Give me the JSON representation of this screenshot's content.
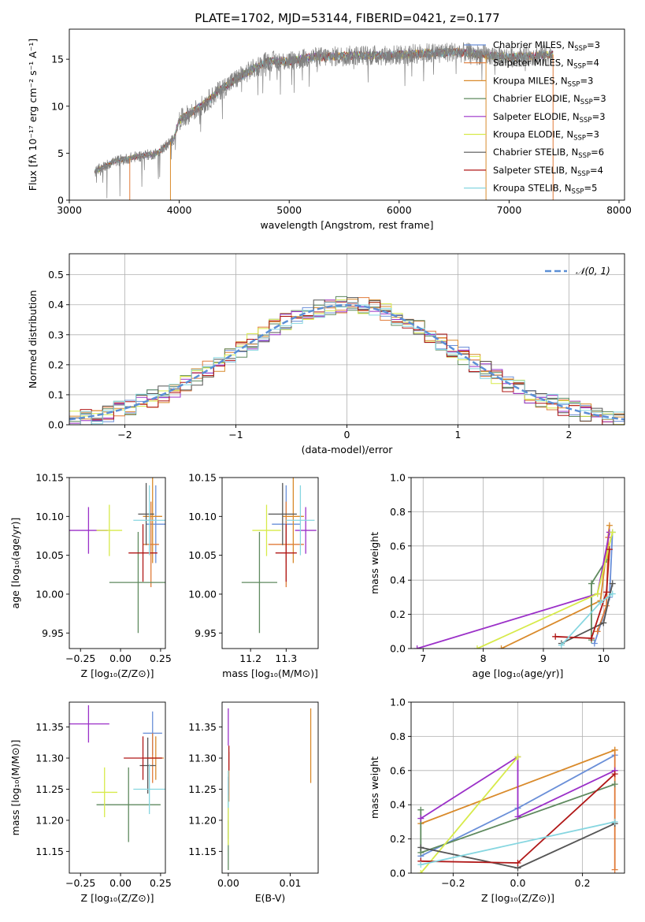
{
  "figure": {
    "title": "PLATE=1702, MJD=53144, FIBERID=0421, z=0.177"
  },
  "models": [
    {
      "name": "Chabrier MILES",
      "nssp": "3",
      "color": "#6a8fd8"
    },
    {
      "name": "Salpeter MILES",
      "nssp": "4",
      "color": "#e07b39"
    },
    {
      "name": "Kroupa MILES",
      "nssp": "3",
      "color": "#d98a2b"
    },
    {
      "name": "Chabrier ELODIE",
      "nssp": "3",
      "color": "#5f8a5f"
    },
    {
      "name": "Salpeter ELODIE",
      "nssp": "3",
      "color": "#9b30c8"
    },
    {
      "name": "Kroupa ELODIE",
      "nssp": "3",
      "color": "#d7ea4a"
    },
    {
      "name": "Chabrier STELIB",
      "nssp": "6",
      "color": "#555555"
    },
    {
      "name": "Salpeter STELIB",
      "nssp": "4",
      "color": "#b01717"
    },
    {
      "name": "Kroupa STELIB",
      "nssp": "5",
      "color": "#86d6e0"
    }
  ],
  "chart_data": [
    {
      "id": "spectrum",
      "type": "line",
      "title": "PLATE=1702, MJD=53144, FIBERID=0421, z=0.177",
      "xlabel": "wavelength [Angstrom, rest frame]",
      "ylabel": "Flux [fλ 10⁻¹⁷ erg cm⁻² s⁻¹ A⁻¹]",
      "xlim": [
        3000,
        8050
      ],
      "ylim": [
        0,
        18.2
      ],
      "xticks": [
        3000,
        4000,
        5000,
        6000,
        7000,
        8000
      ],
      "yticks": [
        0,
        5,
        10,
        15
      ],
      "data_color": "#808080",
      "data_anchors": [
        [
          3230,
          3.0
        ],
        [
          3400,
          4.1
        ],
        [
          3600,
          4.6
        ],
        [
          3800,
          5.0
        ],
        [
          3950,
          6.5
        ],
        [
          4000,
          8.5
        ],
        [
          4200,
          10.0
        ],
        [
          4400,
          12.0
        ],
        [
          4600,
          13.5
        ],
        [
          4800,
          14.8
        ],
        [
          5000,
          14.8
        ],
        [
          5200,
          15.2
        ],
        [
          5400,
          15.3
        ],
        [
          5600,
          15.4
        ],
        [
          5900,
          15.4
        ],
        [
          6200,
          15.6
        ],
        [
          6500,
          15.8
        ],
        [
          7000,
          15.2
        ],
        [
          7400,
          15.5
        ]
      ],
      "edge_drops": [
        {
          "model": 1,
          "x": 3550
        },
        {
          "model": 2,
          "x": 3920
        },
        {
          "model": 2,
          "x": 6790
        },
        {
          "model": 1,
          "x": 7400
        }
      ],
      "legend": "upper right, inside, no frame"
    },
    {
      "id": "residuals",
      "type": "step",
      "xlabel": "(data-model)/error",
      "ylabel": "Normed distribution",
      "xlim": [
        -2.5,
        2.5
      ],
      "ylim": [
        0,
        0.57
      ],
      "xticks": [
        -2,
        -1,
        0,
        1,
        2
      ],
      "yticks": [
        0.0,
        0.1,
        0.2,
        0.3,
        0.4,
        0.5
      ],
      "bin_width": 0.1,
      "reference": {
        "label": "𝒩(0, 1)",
        "mu": 0,
        "sigma": 1,
        "color": "#5b8fd6"
      },
      "grid": true
    },
    {
      "id": "age_vs_Z",
      "type": "errorbar",
      "xlabel": "Z [log₁₀(Z/Z⊙)]",
      "ylabel": "age [log₁₀(age/yr)]",
      "xlim": [
        -0.32,
        0.28
      ],
      "ylim": [
        9.93,
        10.15
      ],
      "xticks": [
        -0.25,
        0.0,
        0.25
      ],
      "yticks": [
        9.95,
        10.0,
        10.05,
        10.1,
        10.15
      ],
      "points": [
        {
          "m": 0,
          "x": 0.22,
          "xerr": 0.06,
          "y": 10.09,
          "yerr": 0.05
        },
        {
          "m": 1,
          "x": 0.19,
          "xerr": 0.05,
          "y": 10.064,
          "yerr": 0.055
        },
        {
          "m": 2,
          "x": 0.2,
          "xerr": 0.06,
          "y": 10.1,
          "yerr": 0.06
        },
        {
          "m": 3,
          "x": 0.11,
          "xerr": 0.18,
          "y": 10.015,
          "yerr": 0.065
        },
        {
          "m": 4,
          "x": -0.2,
          "xerr": 0.12,
          "y": 10.082,
          "yerr": 0.03
        },
        {
          "m": 5,
          "x": -0.07,
          "xerr": 0.08,
          "y": 10.082,
          "yerr": 0.033
        },
        {
          "m": 6,
          "x": 0.16,
          "xerr": 0.05,
          "y": 10.103,
          "yerr": 0.04
        },
        {
          "m": 7,
          "x": 0.14,
          "xerr": 0.09,
          "y": 10.053,
          "yerr": 0.037
        },
        {
          "m": 8,
          "x": 0.18,
          "xerr": 0.1,
          "y": 10.095,
          "yerr": 0.045
        }
      ]
    },
    {
      "id": "age_vs_mass",
      "type": "errorbar",
      "xlabel": "mass [log₁₀(M/M⊙)]",
      "ylabel": "",
      "xlim": [
        11.12,
        11.39
      ],
      "ylim": [
        9.93,
        10.15
      ],
      "xticks": [
        11.2,
        11.3
      ],
      "yticks": [
        9.95,
        10.0,
        10.05,
        10.1,
        10.15
      ],
      "points": [
        {
          "m": 0,
          "x": 11.3,
          "xerr": 0.04,
          "y": 10.09,
          "yerr": 0.05
        },
        {
          "m": 1,
          "x": 11.3,
          "xerr": 0.05,
          "y": 10.064,
          "yerr": 0.055
        },
        {
          "m": 2,
          "x": 11.32,
          "xerr": 0.03,
          "y": 10.1,
          "yerr": 0.06
        },
        {
          "m": 3,
          "x": 11.225,
          "xerr": 0.05,
          "y": 10.015,
          "yerr": 0.065
        },
        {
          "m": 4,
          "x": 11.355,
          "xerr": 0.03,
          "y": 10.082,
          "yerr": 0.03
        },
        {
          "m": 5,
          "x": 11.245,
          "xerr": 0.04,
          "y": 10.082,
          "yerr": 0.033
        },
        {
          "m": 6,
          "x": 11.29,
          "xerr": 0.04,
          "y": 10.103,
          "yerr": 0.04
        },
        {
          "m": 7,
          "x": 11.3,
          "xerr": 0.03,
          "y": 10.053,
          "yerr": 0.037
        },
        {
          "m": 8,
          "x": 11.34,
          "xerr": 0.04,
          "y": 10.095,
          "yerr": 0.045
        }
      ]
    },
    {
      "id": "weight_vs_age",
      "type": "line",
      "xlabel": "age [log₁₀(age/yr)]",
      "ylabel": "mass weight",
      "xlim": [
        6.8,
        10.35
      ],
      "ylim": [
        0,
        1.0
      ],
      "xticks": [
        7,
        8,
        9,
        10
      ],
      "yticks": [
        0.0,
        0.2,
        0.4,
        0.6,
        0.8,
        1.0
      ],
      "grid": true,
      "series": [
        {
          "m": 0,
          "points": [
            [
              9.85,
              0.03
            ],
            [
              10.1,
              0.3
            ],
            [
              10.15,
              0.68
            ]
          ]
        },
        {
          "m": 1,
          "points": [
            [
              9.9,
              0.1
            ],
            [
              10.05,
              0.25
            ],
            [
              10.08,
              0.65
            ]
          ]
        },
        {
          "m": 2,
          "points": [
            [
              8.3,
              0.0
            ],
            [
              9.95,
              0.28
            ],
            [
              10.1,
              0.72
            ]
          ]
        },
        {
          "m": 3,
          "points": [
            [
              9.8,
              0.05
            ],
            [
              9.8,
              0.38
            ],
            [
              10.05,
              0.52
            ]
          ]
        },
        {
          "m": 4,
          "points": [
            [
              6.9,
              0.0
            ],
            [
              9.9,
              0.32
            ],
            [
              10.1,
              0.68
            ]
          ]
        },
        {
          "m": 5,
          "points": [
            [
              7.9,
              0.0
            ],
            [
              9.9,
              0.32
            ],
            [
              10.15,
              0.68
            ]
          ]
        },
        {
          "m": 6,
          "points": [
            [
              9.3,
              0.03
            ],
            [
              10.0,
              0.15
            ],
            [
              10.15,
              0.38
            ]
          ]
        },
        {
          "m": 7,
          "points": [
            [
              9.2,
              0.07
            ],
            [
              9.8,
              0.06
            ],
            [
              10.05,
              0.33
            ],
            [
              10.1,
              0.58
            ]
          ]
        },
        {
          "m": 8,
          "points": [
            [
              9.3,
              0.02
            ],
            [
              9.95,
              0.27
            ],
            [
              10.15,
              0.32
            ]
          ]
        }
      ]
    },
    {
      "id": "mass_vs_Z",
      "type": "errorbar",
      "xlabel": "Z [log₁₀(Z/Z⊙)]",
      "ylabel": "mass [log₁₀(M/M⊙)]",
      "xlim": [
        -0.32,
        0.28
      ],
      "ylim": [
        11.115,
        11.39
      ],
      "xticks": [
        -0.25,
        0.0,
        0.25
      ],
      "yticks": [
        11.15,
        11.2,
        11.25,
        11.3,
        11.35
      ],
      "points": [
        {
          "m": 0,
          "x": 0.2,
          "xerr": 0.06,
          "y": 11.34,
          "yerr": 0.035
        },
        {
          "m": 1,
          "x": 0.2,
          "xerr": 0.05,
          "y": 11.3,
          "yerr": 0.04
        },
        {
          "m": 2,
          "x": 0.22,
          "xerr": 0.05,
          "y": 11.3,
          "yerr": 0.035
        },
        {
          "m": 3,
          "x": 0.05,
          "xerr": 0.2,
          "y": 11.225,
          "yerr": 0.06
        },
        {
          "m": 4,
          "x": -0.2,
          "xerr": 0.13,
          "y": 11.355,
          "yerr": 0.03
        },
        {
          "m": 5,
          "x": -0.1,
          "xerr": 0.08,
          "y": 11.245,
          "yerr": 0.04
        },
        {
          "m": 6,
          "x": 0.17,
          "xerr": 0.05,
          "y": 11.288,
          "yerr": 0.045
        },
        {
          "m": 7,
          "x": 0.14,
          "xerr": 0.12,
          "y": 11.3,
          "yerr": 0.035
        },
        {
          "m": 8,
          "x": 0.18,
          "xerr": 0.1,
          "y": 11.25,
          "yerr": 0.04
        }
      ]
    },
    {
      "id": "mass_vs_ebv",
      "type": "errorbar",
      "xlabel": "E(B-V)",
      "ylabel": "",
      "xlim": [
        -0.001,
        0.0145
      ],
      "ylim": [
        11.115,
        11.39
      ],
      "xticks": [
        0.0,
        0.01
      ],
      "yticks": [
        11.15,
        11.2,
        11.25,
        11.3,
        11.35
      ],
      "points": [
        {
          "m": 0,
          "x": 0.0,
          "xerr": 0,
          "y": 11.22,
          "yerr": 0.05
        },
        {
          "m": 1,
          "x": 0.0001,
          "xerr": 0,
          "y": 11.27,
          "yerr": 0.04
        },
        {
          "m": 3,
          "x": 0.0,
          "xerr": 0,
          "y": 11.16,
          "yerr": 0.04
        },
        {
          "m": 5,
          "x": 0.0,
          "xerr": 0,
          "y": 11.2,
          "yerr": 0.04
        },
        {
          "m": 4,
          "x": 0.0,
          "xerr": 0,
          "y": 11.35,
          "yerr": 0.03
        },
        {
          "m": 7,
          "x": 0.0001,
          "xerr": 0,
          "y": 11.3,
          "yerr": 0.02
        },
        {
          "m": 2,
          "x": 0.0133,
          "xerr": 0,
          "y": 11.32,
          "yerr": 0.06
        },
        {
          "m": 8,
          "x": 0.0,
          "xerr": 0,
          "y": 11.25,
          "yerr": 0.03
        }
      ]
    },
    {
      "id": "weight_vs_Z",
      "type": "line",
      "xlabel": "Z [log₁₀(Z/Z⊙)]",
      "ylabel": "mass weight",
      "xlim": [
        -0.33,
        0.33
      ],
      "ylim": [
        0,
        1.0
      ],
      "xticks": [
        -0.2,
        0.0,
        0.2
      ],
      "yticks": [
        0.0,
        0.2,
        0.4,
        0.6,
        0.8,
        1.0
      ],
      "grid": true,
      "series": [
        {
          "m": 0,
          "points": [
            [
              -0.3,
              0.1
            ],
            [
              0.0,
              0.38
            ],
            [
              0.3,
              0.69
            ]
          ]
        },
        {
          "m": 1,
          "points": [
            [
              0.3,
              0.02
            ],
            [
              0.3,
              0.72
            ]
          ]
        },
        {
          "m": 2,
          "points": [
            [
              -0.3,
              0.29
            ],
            [
              0.3,
              0.72
            ]
          ]
        },
        {
          "m": 3,
          "points": [
            [
              -0.3,
              0.37
            ],
            [
              -0.3,
              0.12
            ],
            [
              0.3,
              0.52
            ]
          ]
        },
        {
          "m": 4,
          "points": [
            [
              -0.3,
              0.32
            ],
            [
              0.0,
              0.68
            ],
            [
              0.0,
              0.33
            ],
            [
              0.3,
              0.6
            ]
          ]
        },
        {
          "m": 5,
          "points": [
            [
              -0.3,
              0.0
            ],
            [
              0.0,
              0.68
            ]
          ]
        },
        {
          "m": 6,
          "points": [
            [
              -0.3,
              0.15
            ],
            [
              0.0,
              0.03
            ],
            [
              0.3,
              0.29
            ]
          ]
        },
        {
          "m": 7,
          "points": [
            [
              -0.3,
              0.07
            ],
            [
              0.0,
              0.06
            ],
            [
              0.3,
              0.58
            ]
          ]
        },
        {
          "m": 8,
          "points": [
            [
              -0.3,
              0.05
            ],
            [
              0.3,
              0.3
            ]
          ]
        }
      ]
    }
  ]
}
